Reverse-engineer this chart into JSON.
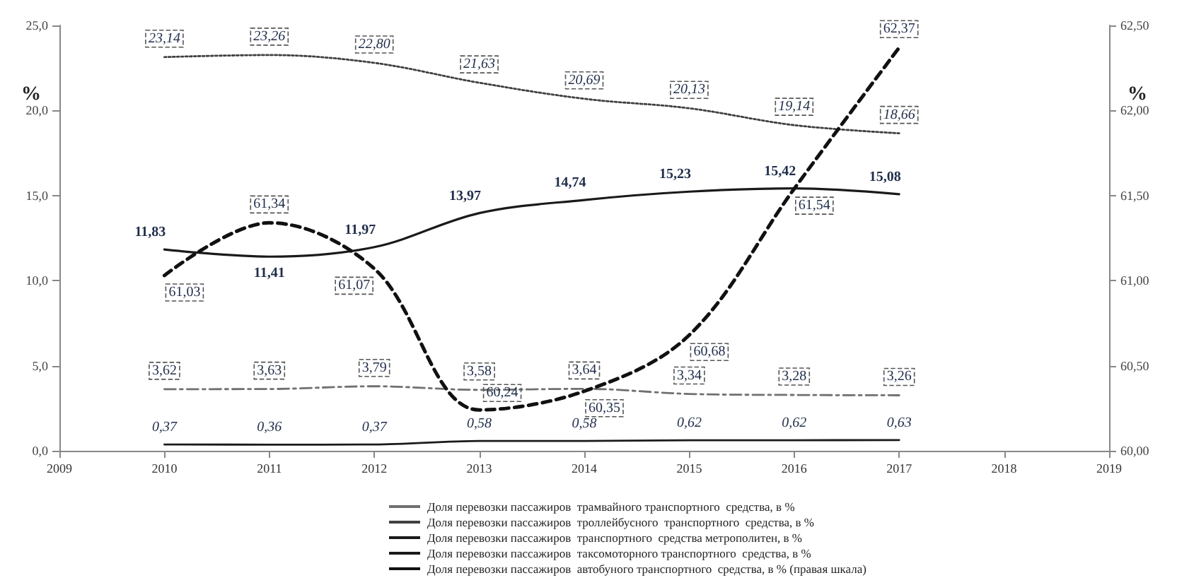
{
  "chart_data": {
    "type": "line",
    "ylabel": "%",
    "y2label": "%",
    "x": [
      2010,
      2011,
      2012,
      2013,
      2014,
      2015,
      2016,
      2017
    ],
    "xlim": [
      2009,
      2019
    ],
    "xticks": [
      2009,
      2010,
      2011,
      2012,
      2013,
      2014,
      2015,
      2016,
      2017,
      2018,
      2019
    ],
    "ylim": [
      0,
      25
    ],
    "yticks": [
      {
        "value": 0,
        "label": "0,0"
      },
      {
        "value": 5,
        "label": "5,0"
      },
      {
        "value": 10,
        "label": "10,0"
      },
      {
        "value": 15,
        "label": "15,0"
      },
      {
        "value": 20,
        "label": "20,0"
      },
      {
        "value": 25,
        "label": "25,0"
      }
    ],
    "y2lim": [
      60,
      62.5
    ],
    "y2ticks": [
      {
        "value": 60,
        "label": "60,00"
      },
      {
        "value": 60.5,
        "label": "60,50"
      },
      {
        "value": 61,
        "label": "61,00"
      },
      {
        "value": 61.5,
        "label": "61,50"
      },
      {
        "value": 62,
        "label": "62,00"
      },
      {
        "value": 62.5,
        "label": "62,50"
      }
    ],
    "grid": false,
    "legend": "bottom",
    "marker": "none",
    "series": [
      {
        "name": "Доля перевозки пассажиров  трамвайного транспортного  средства, в %",
        "color": "#707070",
        "line_style": "dashdot",
        "values": [
          3.62,
          3.63,
          3.79,
          3.58,
          3.64,
          3.34,
          3.28,
          3.26
        ],
        "value_labels": [
          "3,62",
          "3,63",
          "3,79",
          "3,58",
          "3,64",
          "3,34",
          "3,28",
          "3,26"
        ]
      },
      {
        "name": "Доля перевозки пассажиров  троллейбусного  транспортного  средства, в %",
        "color": "#404040",
        "line_style": "dotted",
        "values": [
          23.14,
          23.26,
          22.8,
          21.63,
          20.69,
          20.13,
          19.14,
          18.66
        ],
        "value_labels": [
          "23,14",
          "23,26",
          "22,80",
          "21,63",
          "20,69",
          "20,13",
          "19,14",
          "18,66"
        ]
      },
      {
        "name": "Доля перевозки пассажиров  транспортного  средства метрополитен, в %",
        "color": "#1a1a1a",
        "line_style": "solid",
        "values": [
          11.83,
          11.41,
          11.97,
          13.97,
          14.74,
          15.23,
          15.42,
          15.08
        ],
        "value_labels": [
          "11,83",
          "11,41",
          "11,97",
          "13,97",
          "14,74",
          "15,23",
          "15,42",
          "15,08"
        ]
      },
      {
        "name": "Доля перевозки пассажиров  таксомоторного транспортного  средства, в %",
        "color": "#1a1a1a",
        "line_style": "solid",
        "values": [
          0.37,
          0.36,
          0.37,
          0.58,
          0.58,
          0.62,
          0.62,
          0.63
        ],
        "value_labels": [
          "0,37",
          "0,36",
          "0,37",
          "0,58",
          "0,58",
          "0,62",
          "0,62",
          "0,63"
        ]
      },
      {
        "name": "Доля перевозки пассажиров  автобуного транспортного  средства, в % (правая шкала)",
        "color": "#111111",
        "line_style": "dashed",
        "axis": "y2",
        "values": [
          61.03,
          61.34,
          61.07,
          60.24,
          60.35,
          60.68,
          61.54,
          62.37
        ],
        "value_labels": [
          "61,03",
          "61,34",
          "61,07",
          "60,24",
          "60,35",
          "60,68",
          "61,54",
          "62,37"
        ]
      }
    ]
  }
}
